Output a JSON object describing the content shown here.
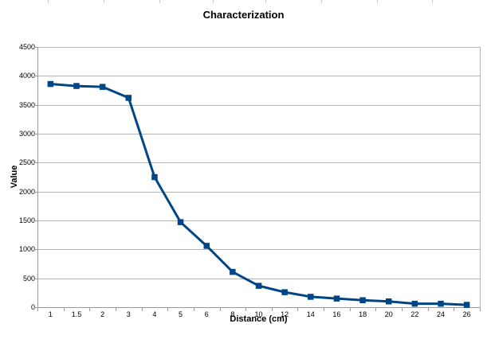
{
  "chart_data": {
    "type": "line",
    "title": "Characterization",
    "xlabel": "Distance (cm)",
    "ylabel": "Value",
    "categories": [
      "1",
      "1.5",
      "2",
      "3",
      "4",
      "5",
      "6",
      "8",
      "10",
      "12",
      "14",
      "16",
      "18",
      "20",
      "22",
      "24",
      "26"
    ],
    "values": [
      3860,
      3825,
      3810,
      3620,
      2250,
      1470,
      1060,
      610,
      370,
      260,
      180,
      150,
      120,
      100,
      60,
      60,
      40
    ],
    "ylim": [
      0,
      4500
    ],
    "ytick_step": 500,
    "grid": "horizontal",
    "legend": "none",
    "marker": "square",
    "line_color": "#004586"
  },
  "colors": {
    "series": "#004586",
    "gridline": "#b6b6b6",
    "axis": "#9b9b9b",
    "text": "#000000",
    "ruler_tick": "#c9c9c9",
    "background": "#ffffff"
  },
  "decorations": {
    "top_ruler_ticks_x": [
      60,
      130,
      200,
      267,
      333,
      403,
      473,
      542
    ]
  }
}
